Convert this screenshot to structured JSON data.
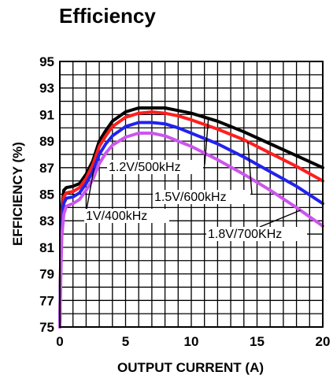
{
  "chart_data": {
    "type": "line",
    "title": "Efficiency",
    "xlabel": "OUTPUT CURRENT (A)",
    "ylabel": "EFFICIENCY (%)",
    "xlim": [
      0,
      20
    ],
    "ylim": [
      75,
      95
    ],
    "x_ticks": [
      0,
      5,
      10,
      15,
      20
    ],
    "y_ticks": [
      75,
      77,
      79,
      81,
      83,
      85,
      87,
      89,
      91,
      93,
      95
    ],
    "grid": {
      "x_step": 1,
      "y_step": 1,
      "visible": true
    },
    "series": [
      {
        "name": "1.2V/500kHz",
        "color": "#000000",
        "x": [
          0,
          0.08,
          0.15,
          0.3,
          0.5,
          1,
          1.5,
          2,
          2.5,
          3,
          3.5,
          4,
          5,
          6,
          7,
          8,
          9,
          10,
          12,
          14,
          16,
          18,
          20
        ],
        "values": [
          75,
          81,
          83.8,
          85.3,
          85.5,
          85.6,
          85.8,
          86.5,
          87.5,
          89,
          89.8,
          90.5,
          91.2,
          91.5,
          91.5,
          91.5,
          91.3,
          91.1,
          90.5,
          89.7,
          88.8,
          87.9,
          87
        ]
      },
      {
        "name": "1.5V/600kHz",
        "color": "#ff1e1e",
        "x": [
          0,
          0.08,
          0.15,
          0.3,
          0.5,
          1,
          1.5,
          2,
          2.5,
          3,
          3.5,
          4,
          5,
          6,
          7,
          8,
          9,
          10,
          12,
          14,
          16,
          18,
          20
        ],
        "values": [
          75,
          80.5,
          83.3,
          84.8,
          85.1,
          85.2,
          85.5,
          86.2,
          87.2,
          88.6,
          89.4,
          90.1,
          90.8,
          91.1,
          91.2,
          91.1,
          90.9,
          90.6,
          89.9,
          89.1,
          88.1,
          87.1,
          86
        ]
      },
      {
        "name": "1V/400kHz",
        "color": "#2222ee",
        "x": [
          0,
          0.08,
          0.15,
          0.3,
          0.5,
          1,
          1.5,
          2,
          2.5,
          3,
          3.5,
          4,
          5,
          6,
          7,
          8,
          9,
          10,
          12,
          14,
          16,
          18,
          20
        ],
        "values": [
          75,
          80,
          82.8,
          84.3,
          84.7,
          84.8,
          85.1,
          85.8,
          86.7,
          88,
          88.8,
          89.4,
          90.1,
          90.4,
          90.4,
          90.3,
          90,
          89.6,
          88.8,
          87.8,
          86.7,
          85.6,
          84.3
        ]
      },
      {
        "name": "1.8V/700KHz",
        "color": "#cc55ee",
        "x": [
          0,
          0.08,
          0.15,
          0.3,
          0.5,
          1,
          1.5,
          2,
          2.5,
          3,
          3.5,
          4,
          5,
          6,
          7,
          8,
          9,
          10,
          12,
          14,
          16,
          18,
          20
        ],
        "values": [
          75,
          79,
          81.8,
          83.5,
          84.1,
          84.3,
          84.6,
          85.3,
          86.1,
          87.3,
          88.1,
          88.7,
          89.3,
          89.6,
          89.6,
          89.4,
          89,
          88.6,
          87.6,
          86.5,
          85.3,
          84,
          82.6
        ]
      }
    ],
    "annotations": [
      {
        "text": "1.2V/500kHz",
        "series": "1.2V/500kHz"
      },
      {
        "text": "1.5V/600kHz",
        "series": "1.5V/600kHz"
      },
      {
        "text": "1V/400kHz",
        "series": "1V/400kHz"
      },
      {
        "text": "1.8V/700KHz",
        "series": "1.8V/700KHz"
      }
    ]
  }
}
